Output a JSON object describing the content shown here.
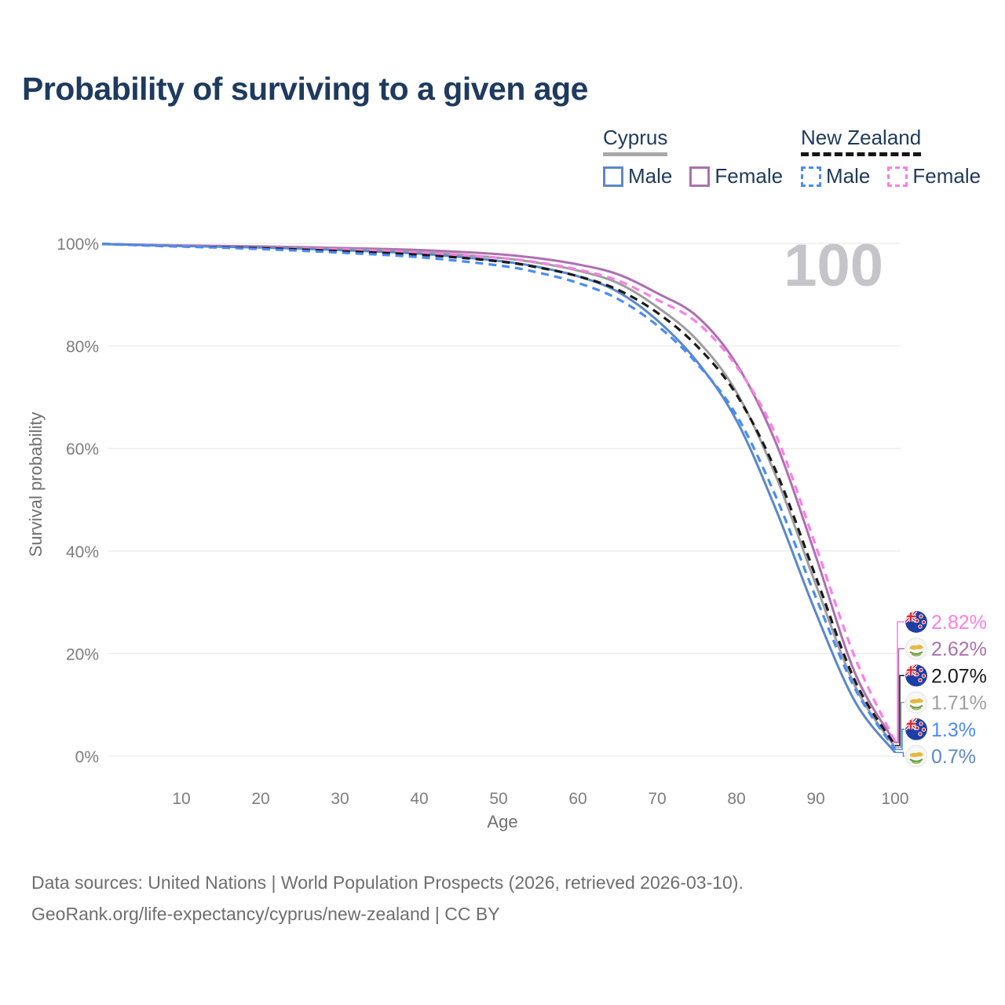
{
  "title": "Probability of surviving to a given age",
  "watermark": "100",
  "legend": {
    "groups": [
      {
        "key": "cyprus",
        "title": "Cyprus",
        "line_style": "solid",
        "underline_color": "#a9a9a9",
        "items": [
          {
            "key": "cyprus-male",
            "label": "Male"
          },
          {
            "key": "cyprus-female",
            "label": "Female"
          }
        ]
      },
      {
        "key": "new-zealand",
        "title": "New Zealand",
        "line_style": "dashed",
        "underline_color": "#151515",
        "items": [
          {
            "key": "new-zealand-male",
            "label": "Male"
          },
          {
            "key": "new-zealand-female",
            "label": "Female"
          }
        ]
      }
    ]
  },
  "chart_data": {
    "type": "line",
    "title": "Probability of surviving to a given age",
    "xlabel": "Age",
    "ylabel": "Survival probability",
    "x_ticks": [
      10,
      20,
      30,
      40,
      50,
      60,
      70,
      80,
      90,
      100
    ],
    "y_ticks_percent": [
      0,
      20,
      40,
      60,
      80,
      100
    ],
    "xlim": [
      0,
      100
    ],
    "ylim": [
      0,
      100
    ],
    "grid": true,
    "legend_position": "top-right",
    "ages": [
      0,
      10,
      20,
      30,
      40,
      50,
      55,
      60,
      65,
      70,
      75,
      80,
      85,
      90,
      95,
      100
    ],
    "series": [
      {
        "key": "cyprus-female",
        "name": "Cyprus Female",
        "color": "#ad6fb0",
        "dashed": false,
        "flag": "cyprus",
        "end_value": 2.62,
        "end_label": "2.62%",
        "values": [
          99.9,
          99.6,
          99.4,
          99.1,
          98.7,
          97.9,
          97.1,
          95.9,
          94.0,
          90.3,
          85.8,
          76.5,
          61.0,
          39.0,
          16.0,
          2.62
        ]
      },
      {
        "key": "cyprus-all",
        "name": "Cyprus (both sexes)",
        "color": "#9e9e9e",
        "dashed": false,
        "flag": "cyprus",
        "end_value": 1.71,
        "end_label": "1.71%",
        "values": [
          99.9,
          99.5,
          99.3,
          98.9,
          98.3,
          97.2,
          96.2,
          94.7,
          92.3,
          87.6,
          81.2,
          71.0,
          54.5,
          33.5,
          13.5,
          1.71
        ]
      },
      {
        "key": "cyprus-male",
        "name": "Cyprus Male",
        "color": "#5b87c9",
        "dashed": false,
        "flag": "cyprus",
        "end_value": 0.7,
        "end_label": "0.7%",
        "values": [
          99.9,
          99.5,
          99.2,
          98.7,
          98.0,
          96.6,
          95.4,
          93.6,
          90.6,
          85.0,
          77.0,
          65.5,
          48.0,
          28.0,
          10.5,
          0.7
        ]
      },
      {
        "key": "new-zealand-female",
        "name": "New Zealand Female",
        "color": "#fc7ee5",
        "dashed": true,
        "flag": "new-zealand",
        "end_value": 2.82,
        "end_label": "2.82%",
        "values": [
          99.9,
          99.5,
          99.2,
          98.8,
          98.2,
          97.2,
          96.3,
          94.9,
          92.8,
          89.0,
          84.6,
          76.0,
          62.5,
          41.0,
          19.0,
          2.82
        ]
      },
      {
        "key": "new-zealand-all",
        "name": "New Zealand (both sexes)",
        "color": "#1a1a1a",
        "dashed": true,
        "flag": "new-zealand",
        "end_value": 2.07,
        "end_label": "2.07%",
        "values": [
          99.9,
          99.4,
          99.1,
          98.5,
          97.8,
          96.5,
          95.3,
          93.6,
          91.0,
          86.5,
          80.0,
          70.5,
          55.5,
          35.0,
          14.5,
          2.07
        ]
      },
      {
        "key": "new-zealand-male",
        "name": "New Zealand Male",
        "color": "#4a8bf5",
        "dashed": true,
        "flag": "new-zealand",
        "end_value": 1.3,
        "end_label": "1.3%",
        "values": [
          99.9,
          99.4,
          98.9,
          98.2,
          97.3,
          95.7,
          94.3,
          92.3,
          89.2,
          84.0,
          76.6,
          66.5,
          50.5,
          31.0,
          13.0,
          1.3
        ]
      }
    ]
  },
  "footer": {
    "line1": "Data sources: United Nations | World Population Prospects (2026, retrieved 2026-03-10).",
    "line2": "GeoRank.org/life-expectancy/cyprus/new-zealand | CC BY"
  }
}
